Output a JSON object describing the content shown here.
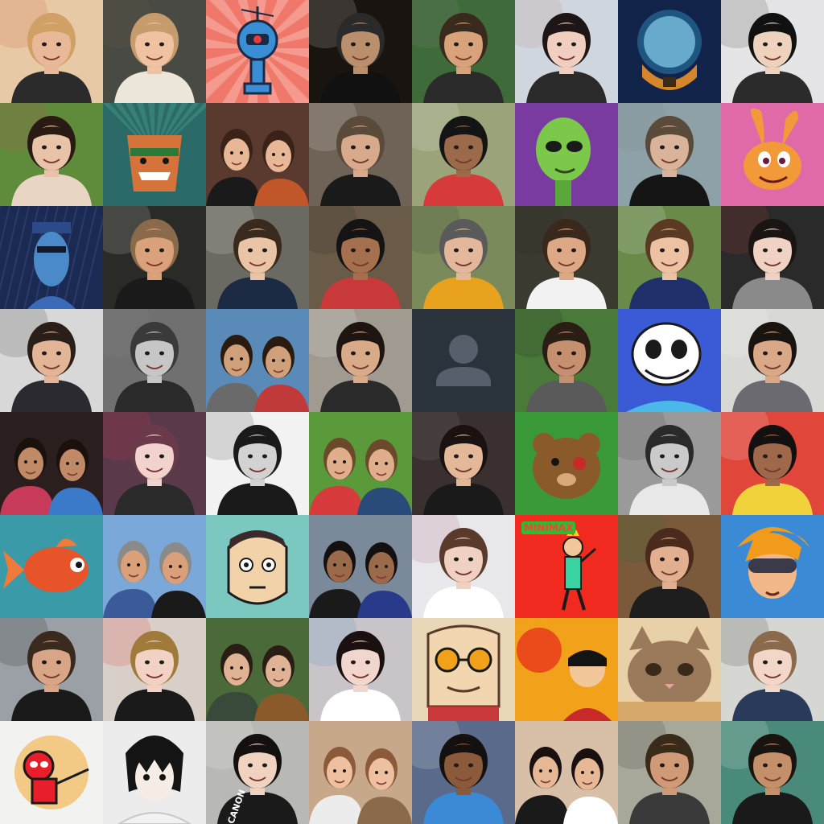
{
  "grid": {
    "rows": 8,
    "cols": 8,
    "tiles": [
      {
        "name": "avatar-woman-with-bottle",
        "kind": "photo",
        "bg": "#e7c9a6",
        "skin": "#e9b899",
        "hair": "#d1a064",
        "shirt": "#2b2b2b",
        "accent": "#c84d2a"
      },
      {
        "name": "avatar-smiling-woman",
        "kind": "photo",
        "bg": "#4a4a44",
        "skin": "#efc2a2",
        "hair": "#c69c6d",
        "shirt": "#ece6da",
        "accent": "#6a5a4a"
      },
      {
        "name": "avatar-blue-robot",
        "kind": "robot",
        "bg": "#f0786b",
        "accent": "#3a8ed6"
      },
      {
        "name": "avatar-godfather",
        "kind": "photo",
        "bg": "#1a1410",
        "skin": "#b98f6c",
        "hair": "#2a2a2a",
        "shirt": "#111111",
        "accent": "#f5f5f5"
      },
      {
        "name": "avatar-smiling-man-outdoors",
        "kind": "photo",
        "bg": "#3f6a3a",
        "skin": "#d8a27a",
        "hair": "#3a2a1e",
        "shirt": "#2b2b2b",
        "accent": "#8a8a8a"
      },
      {
        "name": "avatar-girl-pout",
        "kind": "photo",
        "bg": "#cfd6de",
        "skin": "#f0cfc1",
        "hair": "#1e1616",
        "shirt": "#2a2a2a",
        "accent": "#b57a72"
      },
      {
        "name": "avatar-space-helmet",
        "kind": "helmet",
        "bg": "#12234a",
        "accent": "#3ab8e8"
      },
      {
        "name": "avatar-man-glasses-hands",
        "kind": "photo",
        "bg": "#e5e5e7",
        "skin": "#efd2bd",
        "hair": "#111111",
        "shirt": "#2b2b2b",
        "accent": "#1a1a1a"
      },
      {
        "name": "avatar-woman-flower-park",
        "kind": "photo",
        "bg": "#5f8c3a",
        "skin": "#e9c3a8",
        "hair": "#2a1a14",
        "shirt": "#e8d5c4",
        "accent": "#d63a6a"
      },
      {
        "name": "avatar-chief-cartoon",
        "kind": "cartoon",
        "bg": "#2c6a6a",
        "accent": "#d6733a"
      },
      {
        "name": "avatar-couple-restaurant",
        "kind": "couple",
        "bg": "#5a3a2e",
        "skin": "#e8b896",
        "hair": "#3a2218",
        "shirt": "#1a1a1a",
        "accent": "#c0562a"
      },
      {
        "name": "avatar-man-mug",
        "kind": "photo",
        "bg": "#6f6256",
        "skin": "#d9a98c",
        "hair": "#5a4a3a",
        "shirt": "#1a1a1a",
        "accent": "#ffffff"
      },
      {
        "name": "avatar-man-office",
        "kind": "photo",
        "bg": "#9aa37a",
        "skin": "#9a6a4a",
        "hair": "#141414",
        "shirt": "#d63a3a",
        "accent": "#ffffff"
      },
      {
        "name": "avatar-green-alien",
        "kind": "alien",
        "bg": "#7a3ba0",
        "accent": "#7cc84a"
      },
      {
        "name": "avatar-man-glasses-outdoors",
        "kind": "photo",
        "bg": "#8ea0a8",
        "skin": "#d9b49a",
        "hair": "#5a4a3a",
        "shirt": "#151515",
        "accent": "#888888"
      },
      {
        "name": "avatar-orange-cartoon-creature",
        "kind": "creature",
        "bg": "#e06aa8",
        "accent": "#f29a3a"
      },
      {
        "name": "avatar-blue-cartoon-man",
        "kind": "bluecartoon",
        "bg": "#1b2a52",
        "accent": "#4a8ac8"
      },
      {
        "name": "avatar-man-dark-shirt",
        "kind": "photo",
        "bg": "#2a2a26",
        "skin": "#d9a27a",
        "hair": "#8a6a4a",
        "shirt": "#1a1a1a",
        "accent": "#f0f0f0"
      },
      {
        "name": "avatar-man-navy-sweater",
        "kind": "photo",
        "bg": "#6a6a62",
        "skin": "#eac4a6",
        "hair": "#3a2a1e",
        "shirt": "#1d2a44",
        "accent": "#ffffff"
      },
      {
        "name": "avatar-boy-glasses",
        "kind": "photo",
        "bg": "#6a5a48",
        "skin": "#a5704e",
        "hair": "#141414",
        "shirt": "#c83a3a",
        "accent": "#2a2a2a"
      },
      {
        "name": "avatar-man-nike-cap",
        "kind": "photo",
        "bg": "#7a8a5a",
        "skin": "#e3b89a",
        "hair": "#5a5a5a",
        "shirt": "#e8a21e",
        "accent": "#3a3a3a"
      },
      {
        "name": "avatar-man-white-shirt",
        "kind": "photo",
        "bg": "#3a3a30",
        "skin": "#dca886",
        "hair": "#3a281c",
        "shirt": "#f2f2f2",
        "accent": "#2a2a2a"
      },
      {
        "name": "avatar-woman-striped",
        "kind": "photo",
        "bg": "#6a8a4a",
        "skin": "#ecc2a2",
        "hair": "#5a3a22",
        "shirt": "#1e2f6a",
        "accent": "#ffffff"
      },
      {
        "name": "avatar-girl-glasses-grey",
        "kind": "photo",
        "bg": "#2a2a2a",
        "skin": "#efd2c4",
        "hair": "#1a1412",
        "shirt": "#8a8a8a",
        "accent": "#c8463a"
      },
      {
        "name": "avatar-man-glasses-beard",
        "kind": "photo",
        "bg": "#d8d8d8",
        "skin": "#e2b596",
        "hair": "#2a1e18",
        "shirt": "#2a2a30",
        "accent": "#1a1a1a"
      },
      {
        "name": "avatar-bald-man-bw",
        "kind": "photo",
        "bg": "#707070",
        "skin": "#c6c6c6",
        "hair": "#3a3a3a",
        "shirt": "#2a2a2a",
        "accent": "#888888"
      },
      {
        "name": "avatar-couple-beach",
        "kind": "couple",
        "bg": "#5a8ab8",
        "skin": "#cfa07a",
        "hair": "#2a1a10",
        "shirt": "#6a6a6a",
        "accent": "#c03a3a"
      },
      {
        "name": "avatar-woman-smiling-hands",
        "kind": "photo",
        "bg": "#a09a90",
        "skin": "#d9aa88",
        "hair": "#1e1410",
        "shirt": "#2a2a2a",
        "accent": "#ffffff"
      },
      {
        "name": "avatar-default-placeholder",
        "kind": "placeholder",
        "bg": "#2a323c",
        "accent": "#56606c"
      },
      {
        "name": "avatar-man-sunglasses-jungle",
        "kind": "photo",
        "bg": "#4a7a3a",
        "skin": "#c49070",
        "hair": "#2a1e14",
        "shirt": "#5a5a5a",
        "accent": "#1a1a1a"
      },
      {
        "name": "avatar-sans-skeleton",
        "kind": "skeleton",
        "bg": "#3a5ad6",
        "accent": "#ffffff"
      },
      {
        "name": "avatar-man-grey-shirt",
        "kind": "photo",
        "bg": "#d8d8d4",
        "skin": "#d9a886",
        "hair": "#1a1410",
        "shirt": "#6a6a70",
        "accent": "#ffffff"
      },
      {
        "name": "avatar-two-girls",
        "kind": "couple",
        "bg": "#2a1e1e",
        "skin": "#c08a66",
        "hair": "#1a100c",
        "shirt": "#c83a5a",
        "accent": "#3a7ac8"
      },
      {
        "name": "avatar-girl-purple-glasses",
        "kind": "photo",
        "bg": "#5a3a4a",
        "skin": "#f2d2cc",
        "hair": "#6a3a4a",
        "shirt": "#2a2a2a",
        "accent": "#e82a4a"
      },
      {
        "name": "avatar-man-glasses-bw",
        "kind": "photo",
        "bg": "#f2f2f2",
        "skin": "#d2d2d2",
        "hair": "#1a1a1a",
        "shirt": "#1a1a1a",
        "accent": "#2a2a2a"
      },
      {
        "name": "avatar-couple-field",
        "kind": "couple",
        "bg": "#5a9a3a",
        "skin": "#e0ae8a",
        "hair": "#6a4a2a",
        "shirt": "#d63a3a",
        "accent": "#2a4a7a"
      },
      {
        "name": "avatar-woman-dark-hair",
        "kind": "photo",
        "bg": "#3a3030",
        "skin": "#e2b898",
        "hair": "#1a1210",
        "shirt": "#1a1a1a",
        "accent": "#8a8a8a"
      },
      {
        "name": "avatar-patched-bear",
        "kind": "bear",
        "bg": "#3a9a3a",
        "accent": "#8a5a2a"
      },
      {
        "name": "avatar-man-piano-bw",
        "kind": "photo",
        "bg": "#9a9a9a",
        "skin": "#cacaca",
        "hair": "#2a2a2a",
        "shirt": "#e8e8e8",
        "accent": "#3a3a3a"
      },
      {
        "name": "avatar-boy-yellow-shirt",
        "kind": "photo",
        "bg": "#e0463a",
        "skin": "#a0684a",
        "hair": "#141010",
        "shirt": "#f0d23a",
        "accent": "#ffffff"
      },
      {
        "name": "avatar-goldfish",
        "kind": "fish",
        "bg": "#3a9aa8",
        "accent": "#e8542a"
      },
      {
        "name": "avatar-couple-sunglasses",
        "kind": "couple",
        "bg": "#7aa8d8",
        "skin": "#d9a07a",
        "hair": "#8a8a8a",
        "shirt": "#3a5a9a",
        "accent": "#1a1a1a"
      },
      {
        "name": "avatar-cartoon-man-face",
        "kind": "cartoonface",
        "bg": "#7ac8c0",
        "accent": "#f2d2a8"
      },
      {
        "name": "avatar-couple-sea",
        "kind": "couple",
        "bg": "#7a8a9a",
        "skin": "#9a6a4a",
        "hair": "#141010",
        "shirt": "#1a1a1a",
        "accent": "#2a3a8a"
      },
      {
        "name": "avatar-girl-animal-hat",
        "kind": "photo",
        "bg": "#e8e8ec",
        "skin": "#f0d0c0",
        "hair": "#5a3a2a",
        "shirt": "#ffffff",
        "accent": "#a84a6a"
      },
      {
        "name": "avatar-minimax-stick-figure",
        "kind": "minimax",
        "bg": "#f02a1e",
        "accent": "#3ad2a0",
        "logo": "MINIMAX"
      },
      {
        "name": "avatar-man-bottle",
        "kind": "photo",
        "bg": "#7a5a3a",
        "skin": "#e2b090",
        "hair": "#4a2a1a",
        "shirt": "#1e1e1e",
        "accent": "#2a6a3a"
      },
      {
        "name": "avatar-cartoon-goggles",
        "kind": "goggles",
        "bg": "#3a8ad6",
        "accent": "#f29a1a"
      },
      {
        "name": "avatar-man-sunglasses-car",
        "kind": "photo",
        "bg": "#9aa0a6",
        "skin": "#d8a686",
        "hair": "#3a2a1e",
        "shirt": "#1a1a1a",
        "accent": "#0a0a0a"
      },
      {
        "name": "avatar-girl-red-lips",
        "kind": "photo",
        "bg": "#d8d0c8",
        "skin": "#f2d2c4",
        "hair": "#a07a3a",
        "shirt": "#1a1a1a",
        "accent": "#e81a2a"
      },
      {
        "name": "avatar-man-dog",
        "kind": "couple",
        "bg": "#4a6a3a",
        "skin": "#e0b294",
        "hair": "#2a1e14",
        "shirt": "#3a4a3a",
        "accent": "#8a5a2a"
      },
      {
        "name": "avatar-girl-blue-eyes",
        "kind": "photo",
        "bg": "#c8c4c8",
        "skin": "#f0d6cc",
        "hair": "#1a1010",
        "shirt": "#ffffff",
        "accent": "#3a8ac8"
      },
      {
        "name": "avatar-cartoon-goggled-man",
        "kind": "cartoon2",
        "bg": "#e8d8b8",
        "accent": "#5a3a2a"
      },
      {
        "name": "avatar-luffy-punch",
        "kind": "anime",
        "bg": "#f2a21a",
        "accent": "#e8361a"
      },
      {
        "name": "avatar-cat-face",
        "kind": "cat",
        "bg": "#e8d0a8",
        "accent": "#9a7a5a"
      },
      {
        "name": "avatar-girl-glasses-bedroom",
        "kind": "photo",
        "bg": "#d6d6d2",
        "skin": "#f2d6c8",
        "hair": "#8a6a4a",
        "shirt": "#2a3a5a",
        "accent": "#1a1a1a"
      },
      {
        "name": "avatar-deadpool-cartoon",
        "kind": "deadpool",
        "bg": "#f2f2f0",
        "accent": "#e81e2a"
      },
      {
        "name": "avatar-l-anime",
        "kind": "anime2",
        "bg": "#ececec",
        "accent": "#141414"
      },
      {
        "name": "avatar-girl-glasses-camera",
        "kind": "photo",
        "bg": "#b8b8b4",
        "skin": "#f0d2c0",
        "hair": "#141010",
        "shirt": "#1a1a1a",
        "accent": "#ffffff",
        "text": "CANON"
      },
      {
        "name": "avatar-man-baby",
        "kind": "couple",
        "bg": "#c8a88a",
        "skin": "#eec0a0",
        "hair": "#8a5a3a",
        "shirt": "#ececec",
        "accent": "#8a6a4a"
      },
      {
        "name": "avatar-boy-room",
        "kind": "photo",
        "bg": "#5a6a8a",
        "skin": "#8a5a3a",
        "hair": "#141010",
        "shirt": "#3a8ad6",
        "accent": "#ffffff"
      },
      {
        "name": "avatar-couple-selfie",
        "kind": "couple",
        "bg": "#d8c0a8",
        "skin": "#e6b896",
        "hair": "#1a1010",
        "shirt": "#1a1a1a",
        "accent": "#ffffff"
      },
      {
        "name": "avatar-man-sunglasses-backpack",
        "kind": "photo",
        "bg": "#a8a89a",
        "skin": "#d09a76",
        "hair": "#3a2a1a",
        "shirt": "#3a3a3a",
        "accent": "#1a1a1a"
      },
      {
        "name": "avatar-man-glasses-shop",
        "kind": "photo",
        "bg": "#4a8a7a",
        "skin": "#c4906a",
        "hair": "#1a1410",
        "shirt": "#1a1a1a",
        "accent": "#ffffff"
      }
    ]
  }
}
